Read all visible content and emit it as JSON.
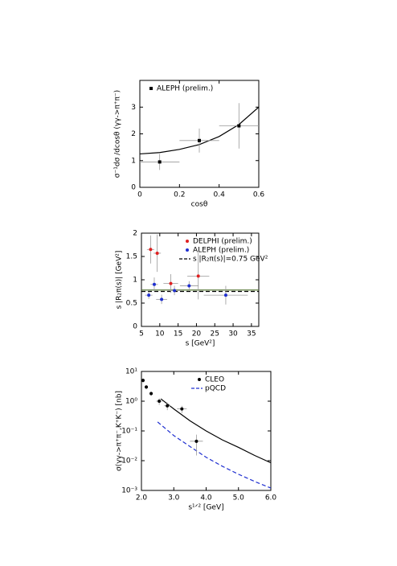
{
  "chart_data": [
    {
      "type": "scatter",
      "xlabel": "cosθ",
      "ylabel": "σ⁻¹dσ /dcosθ (γγ->π⁺π⁻)",
      "xlim": [
        0,
        0.6
      ],
      "ylim": [
        0,
        4
      ],
      "xticks": [
        0,
        0.2,
        0.4,
        0.6
      ],
      "yticks": [
        0,
        1,
        2,
        3
      ],
      "legend": "upper left",
      "series": [
        {
          "name": "ALEPH (prelim.)",
          "color": "#000000",
          "marker": "square",
          "x": [
            0.1,
            0.3,
            0.5
          ],
          "values": [
            0.95,
            1.75,
            2.3
          ],
          "xerr": [
            0.1,
            0.1,
            0.1
          ],
          "yerr": [
            0.3,
            0.45,
            0.85
          ]
        }
      ],
      "lines": [
        {
          "color": "#000000",
          "dash": false,
          "x": [
            0,
            0.1,
            0.2,
            0.3,
            0.4,
            0.5,
            0.6
          ],
          "values": [
            1.25,
            1.3,
            1.42,
            1.6,
            1.9,
            2.35,
            3.0
          ]
        }
      ]
    },
    {
      "type": "scatter",
      "xlabel": "s [GeV²]",
      "ylabel": "s |R₂π(s)| [GeV²]",
      "xlim": [
        5,
        37
      ],
      "ylim": [
        0,
        2
      ],
      "xticks": [
        5,
        10,
        15,
        20,
        25,
        30,
        35
      ],
      "yticks": [
        0,
        0.5,
        1,
        1.5,
        2
      ],
      "legend": "upper right",
      "series": [
        {
          "name": "DELPHI (prelim.)",
          "color": "#e02020",
          "marker": "circle",
          "x": [
            7.5,
            9.3,
            13,
            20.5
          ],
          "values": [
            1.65,
            1.57,
            0.92,
            1.08
          ],
          "xerr": [
            1,
            1,
            2,
            3
          ],
          "yerr": [
            0.3,
            0.4,
            0.2,
            0.5
          ]
        },
        {
          "name": "ALEPH (prelim.)",
          "color": "#1f2fd0",
          "marker": "circle",
          "x": [
            7,
            8.5,
            10.5,
            14,
            18,
            28
          ],
          "values": [
            0.67,
            0.9,
            0.58,
            0.77,
            0.87,
            0.67
          ],
          "xerr": [
            1,
            1,
            1.5,
            2,
            2.5,
            6
          ],
          "yerr": [
            0.08,
            0.15,
            0.1,
            0.1,
            0.1,
            0.2
          ]
        }
      ],
      "lines": [
        {
          "color": "#5a7a3a",
          "dash": false,
          "x": [
            5,
            37
          ],
          "values": [
            0.78,
            0.78
          ]
        },
        {
          "name": "s |R₂π(s)|=0.75 GeV²",
          "color": "#000000",
          "dash": true,
          "x": [
            5,
            37
          ],
          "values": [
            0.75,
            0.75
          ]
        }
      ]
    },
    {
      "type": "scatter",
      "xlabel": "s¹ᐟ² [GeV]",
      "ylabel": "σ(γγ->π⁺π⁻,K⁺K⁻) [nb]",
      "yscale": "log",
      "xlim": [
        2,
        6
      ],
      "ylim": [
        0.001,
        10
      ],
      "xticks": [
        {
          "value": 2,
          "label": "2.0"
        },
        {
          "value": 3,
          "label": "3.0"
        },
        {
          "value": 4,
          "label": "4.0"
        },
        {
          "value": 5,
          "label": "5.0"
        },
        {
          "value": 6,
          "label": "6.0"
        }
      ],
      "yticks": [
        {
          "value": 10,
          "label": "10¹"
        },
        {
          "value": 1,
          "label": "10⁰"
        },
        {
          "value": 0.1,
          "label": "10⁻¹"
        },
        {
          "value": 0.01,
          "label": "10⁻²"
        },
        {
          "value": 0.001,
          "label": "10⁻³"
        }
      ],
      "legend": "upper right",
      "series": [
        {
          "name": "CLEO",
          "color": "#000000",
          "marker": "circle",
          "x": [
            2.05,
            2.15,
            2.3,
            2.55,
            2.8,
            3.25,
            3.7
          ],
          "values": [
            5,
            3,
            1.8,
            1.0,
            0.7,
            0.55,
            0.045
          ],
          "xerr": [
            0.03,
            0.05,
            0.05,
            0.1,
            0.1,
            0.15,
            0.2
          ],
          "yerr": [
            0.8,
            0.5,
            0.3,
            0.25,
            0.2,
            0.15,
            0.03
          ]
        }
      ],
      "lines": [
        {
          "color": "#000000",
          "dash": false,
          "x": [
            2.6,
            3,
            3.5,
            4,
            4.5,
            5,
            5.5,
            6
          ],
          "values": [
            1.2,
            0.55,
            0.22,
            0.1,
            0.05,
            0.028,
            0.015,
            0.0085
          ]
        },
        {
          "name": "pQCD",
          "color": "#2030d0",
          "dash": true,
          "x": [
            2.5,
            3,
            3.5,
            4,
            4.5,
            5,
            5.5,
            6
          ],
          "values": [
            0.2,
            0.07,
            0.03,
            0.013,
            0.0065,
            0.0035,
            0.002,
            0.0012
          ]
        }
      ]
    }
  ]
}
